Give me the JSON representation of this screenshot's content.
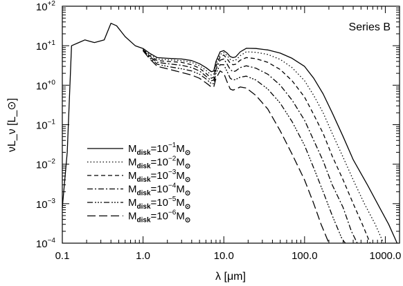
{
  "chart_data": {
    "type": "line",
    "xscale": "log",
    "yscale": "log",
    "xlim": [
      0.1,
      1500
    ],
    "ylim": [
      0.0001,
      100
    ],
    "xlabel": "λ [μm]",
    "ylabel": "νL_ν [L_⊙]",
    "annotation": "Series B",
    "legend_position": "lower-left",
    "x_ticks": [
      {
        "value": 0.1,
        "label": "0.1"
      },
      {
        "value": 1,
        "label": "1.0"
      },
      {
        "value": 10,
        "label": "10.0"
      },
      {
        "value": 100,
        "label": "100.0"
      },
      {
        "value": 1000,
        "label": "1000.0"
      }
    ],
    "y_ticks": [
      {
        "value": 0.0001,
        "base": "10",
        "exp": "−4"
      },
      {
        "value": 0.001,
        "base": "10",
        "exp": "−3"
      },
      {
        "value": 0.01,
        "base": "10",
        "exp": "−2"
      },
      {
        "value": 0.1,
        "base": "10",
        "exp": "−1"
      },
      {
        "value": 1,
        "base": "10",
        "exp": "+0"
      },
      {
        "value": 10,
        "base": "10",
        "exp": "+1"
      },
      {
        "value": 100,
        "base": "10",
        "exp": "+2"
      }
    ],
    "series": [
      {
        "legend": {
          "m": "M",
          "sub": "disk",
          "eq": "=10",
          "exp": "−1",
          "unit": "M",
          "unit_sub": "⊙"
        },
        "dash": "solid",
        "points": [
          [
            0.1,
            0.0008
          ],
          [
            0.115,
            0.02
          ],
          [
            0.13,
            10
          ],
          [
            0.16,
            12
          ],
          [
            0.19,
            14
          ],
          [
            0.25,
            12
          ],
          [
            0.33,
            14
          ],
          [
            0.4,
            37
          ],
          [
            0.47,
            32
          ],
          [
            0.6,
            17
          ],
          [
            0.8,
            10
          ],
          [
            1.0,
            8.5
          ],
          [
            1.2,
            6.5
          ],
          [
            1.5,
            5
          ],
          [
            2,
            4.8
          ],
          [
            3,
            4.6
          ],
          [
            4,
            4.2
          ],
          [
            5,
            3.5
          ],
          [
            6,
            2.8
          ],
          [
            7,
            2.2
          ],
          [
            7.5,
            2.3
          ],
          [
            8,
            4
          ],
          [
            9,
            7
          ],
          [
            10,
            7.5
          ],
          [
            11,
            6.5
          ],
          [
            12,
            5.3
          ],
          [
            13,
            5
          ],
          [
            14,
            5.2
          ],
          [
            16,
            7
          ],
          [
            19,
            8.6
          ],
          [
            25,
            8.5
          ],
          [
            35,
            7.8
          ],
          [
            50,
            6.5
          ],
          [
            70,
            4.8
          ],
          [
            100,
            3
          ],
          [
            130,
            1.5
          ],
          [
            170,
            0.6
          ],
          [
            220,
            0.2
          ],
          [
            300,
            0.05
          ],
          [
            400,
            0.013
          ],
          [
            600,
            0.003
          ],
          [
            850,
            0.0008
          ],
          [
            1100,
            0.0003
          ],
          [
            1400,
            0.0001
          ]
        ]
      },
      {
        "legend": {
          "m": "M",
          "sub": "disk",
          "eq": "=10",
          "exp": "−2",
          "unit": "M",
          "unit_sub": "⊙"
        },
        "dash": "1.5 3",
        "points": [
          [
            1.0,
            8.2
          ],
          [
            1.2,
            6
          ],
          [
            1.5,
            4.6
          ],
          [
            2,
            4.4
          ],
          [
            3,
            4.2
          ],
          [
            4,
            3.8
          ],
          [
            5,
            3.1
          ],
          [
            6,
            2.4
          ],
          [
            7,
            1.8
          ],
          [
            7.5,
            1.9
          ],
          [
            8,
            3.4
          ],
          [
            9,
            6
          ],
          [
            10,
            6.7
          ],
          [
            11,
            5.6
          ],
          [
            12,
            4.5
          ],
          [
            13,
            4.2
          ],
          [
            14,
            4.3
          ],
          [
            16,
            5.6
          ],
          [
            19,
            7
          ],
          [
            25,
            6.8
          ],
          [
            35,
            6
          ],
          [
            50,
            4.5
          ],
          [
            70,
            2.8
          ],
          [
            100,
            1.3
          ],
          [
            130,
            0.55
          ],
          [
            170,
            0.2
          ],
          [
            220,
            0.06
          ],
          [
            300,
            0.015
          ],
          [
            400,
            0.004
          ],
          [
            550,
            0.001
          ],
          [
            750,
            0.0003
          ],
          [
            950,
            0.0001
          ]
        ]
      },
      {
        "legend": {
          "m": "M",
          "sub": "disk",
          "eq": "=10",
          "exp": "−3",
          "unit": "M",
          "unit_sub": "⊙"
        },
        "dash": "6 4",
        "points": [
          [
            1.0,
            8
          ],
          [
            1.2,
            5.6
          ],
          [
            1.5,
            4.2
          ],
          [
            2,
            4
          ],
          [
            3,
            3.8
          ],
          [
            4,
            3.3
          ],
          [
            5,
            2.7
          ],
          [
            6,
            2
          ],
          [
            7,
            1.5
          ],
          [
            7.5,
            1.6
          ],
          [
            8,
            3
          ],
          [
            9,
            5.2
          ],
          [
            10,
            5.8
          ],
          [
            11,
            4.6
          ],
          [
            12,
            3.6
          ],
          [
            13,
            3.3
          ],
          [
            14,
            3.4
          ],
          [
            16,
            4.3
          ],
          [
            19,
            5
          ],
          [
            25,
            4.7
          ],
          [
            35,
            3.8
          ],
          [
            50,
            2.5
          ],
          [
            70,
            1.3
          ],
          [
            100,
            0.5
          ],
          [
            130,
            0.18
          ],
          [
            170,
            0.06
          ],
          [
            220,
            0.016
          ],
          [
            300,
            0.004
          ],
          [
            400,
            0.001
          ],
          [
            520,
            0.0003
          ],
          [
            650,
            0.0001
          ]
        ]
      },
      {
        "legend": {
          "m": "M",
          "sub": "disk",
          "eq": "=10",
          "exp": "−4",
          "unit": "M",
          "unit_sub": "⊙"
        },
        "dash": "8 3 2 3",
        "points": [
          [
            1.0,
            7.8
          ],
          [
            1.2,
            5.3
          ],
          [
            1.5,
            3.8
          ],
          [
            2,
            3.5
          ],
          [
            3,
            3.2
          ],
          [
            4,
            2.8
          ],
          [
            5,
            2.3
          ],
          [
            6,
            1.7
          ],
          [
            7,
            1.3
          ],
          [
            7.5,
            1.35
          ],
          [
            8,
            2.5
          ],
          [
            9,
            4.3
          ],
          [
            10,
            4.6
          ],
          [
            11,
            3.4
          ],
          [
            12,
            2.5
          ],
          [
            13,
            2.2
          ],
          [
            14,
            2.3
          ],
          [
            16,
            2.8
          ],
          [
            19,
            3.1
          ],
          [
            25,
            2.7
          ],
          [
            35,
            1.9
          ],
          [
            50,
            1
          ],
          [
            70,
            0.42
          ],
          [
            100,
            0.13
          ],
          [
            130,
            0.04
          ],
          [
            170,
            0.012
          ],
          [
            220,
            0.003
          ],
          [
            300,
            0.0008
          ],
          [
            380,
            0.0002
          ],
          [
            450,
            0.0001
          ]
        ]
      },
      {
        "legend": {
          "m": "M",
          "sub": "disk",
          "eq": "=10",
          "exp": "−5",
          "unit": "M",
          "unit_sub": "⊙"
        },
        "dash": "8 3 2 2 2 2 2 3",
        "points": [
          [
            1.0,
            7.6
          ],
          [
            1.2,
            5
          ],
          [
            1.5,
            3.4
          ],
          [
            2,
            3
          ],
          [
            3,
            2.6
          ],
          [
            4,
            2.3
          ],
          [
            5,
            1.9
          ],
          [
            6,
            1.45
          ],
          [
            7,
            1.1
          ],
          [
            7.5,
            1.1
          ],
          [
            8,
            2
          ],
          [
            9,
            3.3
          ],
          [
            10,
            3.3
          ],
          [
            11,
            2.2
          ],
          [
            12,
            1.5
          ],
          [
            13,
            1.35
          ],
          [
            14,
            1.4
          ],
          [
            16,
            1.6
          ],
          [
            19,
            1.7
          ],
          [
            25,
            1.35
          ],
          [
            35,
            0.8
          ],
          [
            50,
            0.35
          ],
          [
            70,
            0.12
          ],
          [
            100,
            0.03
          ],
          [
            130,
            0.008
          ],
          [
            170,
            0.002
          ],
          [
            220,
            0.0005
          ],
          [
            290,
            0.00013
          ],
          [
            320,
            0.0001
          ]
        ]
      },
      {
        "legend": {
          "m": "M",
          "sub": "disk",
          "eq": "=10",
          "exp": "−6",
          "unit": "M",
          "unit_sub": "⊙"
        },
        "dash": "12 5",
        "points": [
          [
            1.0,
            7.4
          ],
          [
            1.2,
            4.7
          ],
          [
            1.5,
            3
          ],
          [
            2,
            2.6
          ],
          [
            3,
            2.1
          ],
          [
            4,
            1.8
          ],
          [
            5,
            1.5
          ],
          [
            6,
            1.15
          ],
          [
            7,
            0.9
          ],
          [
            7.5,
            0.9
          ],
          [
            8,
            1.5
          ],
          [
            9,
            2.3
          ],
          [
            10,
            2
          ],
          [
            11,
            1.2
          ],
          [
            12,
            0.8
          ],
          [
            13,
            0.75
          ],
          [
            14,
            0.8
          ],
          [
            16,
            0.9
          ],
          [
            19,
            0.85
          ],
          [
            25,
            0.55
          ],
          [
            35,
            0.25
          ],
          [
            50,
            0.07
          ],
          [
            70,
            0.018
          ],
          [
            100,
            0.004
          ],
          [
            130,
            0.001
          ],
          [
            160,
            0.0003
          ],
          [
            200,
            0.0001
          ]
        ]
      }
    ]
  }
}
